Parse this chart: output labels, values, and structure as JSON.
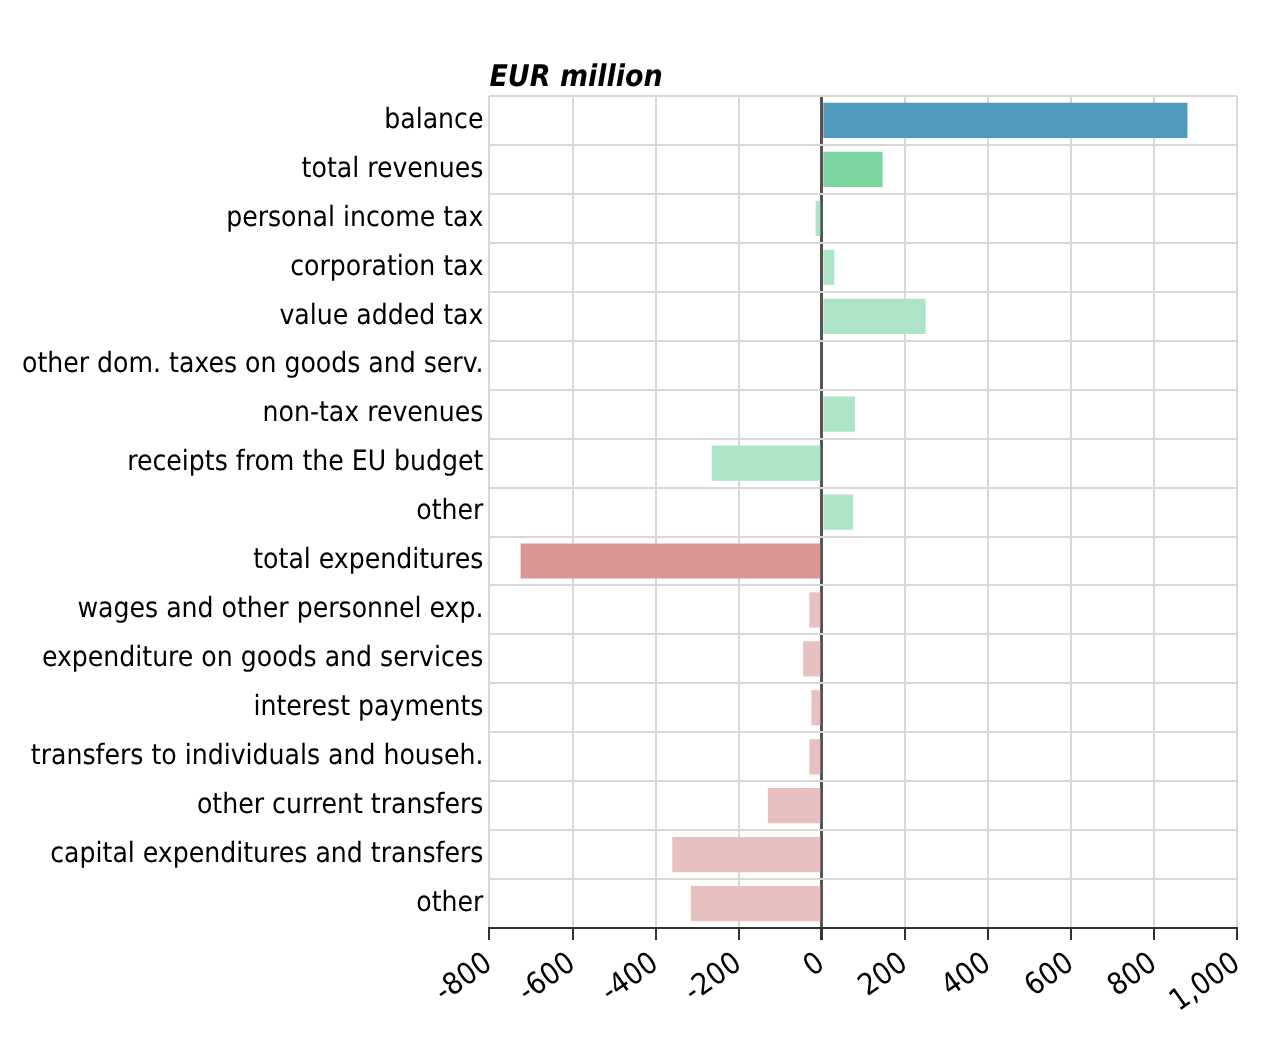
{
  "chart_data": {
    "type": "bar",
    "orientation": "horizontal",
    "title": "EUR million",
    "categories": [
      "balance",
      "total revenues",
      "personal income tax",
      "corporation tax",
      "value added tax",
      "other dom. taxes on goods and serv.",
      "non-tax revenues",
      "receipts from the EU budget",
      "other",
      "total expenditures",
      "wages and other personnel exp.",
      "expenditure on goods and services",
      "interest payments",
      "transfers to individuals and househ.",
      "other current transfers",
      "capital expenditures and transfers",
      "other"
    ],
    "values": [
      880,
      146,
      -15,
      30,
      250,
      0,
      80,
      -265,
      75,
      -725,
      -30,
      -45,
      -25,
      -30,
      -130,
      -360,
      -315
    ],
    "colors": [
      "#4f9aba",
      "#7bd3a0",
      "#aee5c7",
      "#aee5c7",
      "#aee5c7",
      "#aee5c7",
      "#aee5c7",
      "#aee5c7",
      "#aee5c7",
      "#db9595",
      "#e8c0c0",
      "#e8c0c0",
      "#e8c0c0",
      "#e8c0c0",
      "#e8c0c0",
      "#e8c0c0",
      "#e8c0c0"
    ],
    "xlim": [
      -800,
      1000
    ],
    "xticks": [
      -800,
      -600,
      -400,
      -200,
      0,
      200,
      400,
      600,
      800,
      {
        "value": 1000,
        "label": "1,000"
      }
    ],
    "grid": true
  }
}
